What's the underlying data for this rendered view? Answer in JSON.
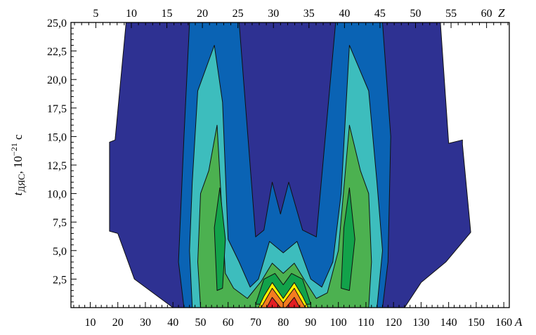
{
  "chart_data": {
    "type": "contour",
    "xlabel": "A",
    "x_top_label": "Z",
    "ylabel": {
      "main": "t",
      "subscript": "ДЯС",
      "unit_prefix": ", 10",
      "exponent": "−21",
      "unit": " с"
    },
    "xlim": [
      3,
      162
    ],
    "x_top_lim": [
      1.5,
      63.2
    ],
    "ylim": [
      0,
      25
    ],
    "x_ticks": [
      10,
      20,
      30,
      40,
      50,
      60,
      70,
      80,
      90,
      100,
      110,
      120,
      130,
      140,
      150,
      160
    ],
    "x_top_ticks": [
      5,
      10,
      15,
      20,
      25,
      30,
      35,
      40,
      45,
      50,
      55,
      60
    ],
    "y_ticks": [
      2.5,
      5.0,
      7.5,
      10.0,
      12.5,
      15.0,
      17.5,
      20.0,
      22.5,
      25.0
    ],
    "y_tick_labels": [
      "2,5",
      "5,0",
      "7,5",
      "10,0",
      "12,5",
      "15,0",
      "17,5",
      "20,0",
      "22,5",
      "25,0"
    ],
    "colors": {
      "level1": "#2e3192",
      "level2": "#0a63b4",
      "level3": "#3dbdbd",
      "level4": "#4cb150",
      "level5": "#12a24a",
      "level6": "#fff200",
      "level7": "#f47c20",
      "level8": "#e31e24"
    },
    "regions": [
      {
        "level": 1,
        "points": [
          [
            40,
            0
          ],
          [
            26,
            2.5
          ],
          [
            20,
            6.5
          ],
          [
            17,
            6.7
          ],
          [
            17,
            14.5
          ],
          [
            19,
            14.7
          ],
          [
            23,
            25
          ],
          [
            137,
            25
          ],
          [
            140,
            14.4
          ],
          [
            145,
            14.7
          ],
          [
            145,
            14.3
          ],
          [
            148,
            6.6
          ],
          [
            139,
            4
          ],
          [
            130,
            2.2
          ],
          [
            124,
            0
          ]
        ]
      },
      {
        "level": 2,
        "points": [
          [
            44,
            0
          ],
          [
            42,
            4
          ],
          [
            44,
            15
          ],
          [
            46,
            25
          ],
          [
            64,
            25
          ],
          [
            70,
            6.2
          ],
          [
            73,
            6.8
          ],
          [
            76,
            11
          ],
          [
            79,
            8.2
          ],
          [
            82,
            11
          ],
          [
            87,
            6.8
          ],
          [
            92,
            6.2
          ],
          [
            99,
            25
          ],
          [
            116,
            25
          ],
          [
            119,
            15
          ],
          [
            118,
            4
          ],
          [
            116,
            0
          ]
        ]
      },
      {
        "level": 3,
        "points": [
          [
            47,
            0
          ],
          [
            46,
            5
          ],
          [
            47,
            11
          ],
          [
            49,
            19
          ],
          [
            55,
            23
          ],
          [
            58,
            18
          ],
          [
            60,
            6
          ],
          [
            64,
            4
          ],
          [
            68,
            1.8
          ],
          [
            71,
            2.5
          ],
          [
            75,
            5.8
          ],
          [
            80,
            4.8
          ],
          [
            85,
            5.8
          ],
          [
            90,
            2.5
          ],
          [
            94,
            1.8
          ],
          [
            98,
            4
          ],
          [
            101,
            10
          ],
          [
            104,
            23
          ],
          [
            111,
            19
          ],
          [
            114,
            11
          ],
          [
            116,
            5
          ],
          [
            114,
            0
          ]
        ]
      },
      {
        "level": 4,
        "points": [
          [
            50,
            0
          ],
          [
            49,
            4
          ],
          [
            50,
            10
          ],
          [
            53,
            12
          ],
          [
            56,
            16
          ],
          [
            59,
            3
          ],
          [
            62,
            1.7
          ],
          [
            67,
            0.8
          ],
          [
            72,
            2.3
          ],
          [
            76,
            3.9
          ],
          [
            80,
            3
          ],
          [
            84,
            3.9
          ],
          [
            88,
            2.3
          ],
          [
            92,
            0.8
          ],
          [
            96,
            1.3
          ],
          [
            100,
            5
          ],
          [
            104,
            16
          ],
          [
            108,
            12
          ],
          [
            111,
            10
          ],
          [
            112,
            4
          ],
          [
            111,
            0
          ]
        ]
      },
      {
        "level": 5,
        "points": [
          [
            56,
            1.5
          ],
          [
            55,
            7
          ],
          [
            57,
            10.5
          ],
          [
            59,
            6
          ],
          [
            58,
            1.7
          ]
        ]
      },
      {
        "level": 5,
        "points": [
          [
            101,
            1.7
          ],
          [
            102,
            7
          ],
          [
            104,
            10.5
          ],
          [
            106,
            6
          ],
          [
            104,
            1.5
          ]
        ]
      },
      {
        "level": 5,
        "points": [
          [
            70,
            0.3
          ],
          [
            73,
            2.5
          ],
          [
            77,
            3
          ],
          [
            80,
            2
          ],
          [
            83,
            3
          ],
          [
            87,
            2.5
          ],
          [
            90,
            0.3
          ]
        ]
      },
      {
        "level": 6,
        "points": [
          [
            71,
            0
          ],
          [
            73,
            1
          ],
          [
            76,
            2.2
          ],
          [
            80,
            0.8
          ],
          [
            84,
            2.2
          ],
          [
            87,
            1
          ],
          [
            89,
            0
          ]
        ]
      },
      {
        "level": 7,
        "points": [
          [
            72,
            0
          ],
          [
            76,
            1.7
          ],
          [
            80,
            0.4
          ],
          [
            84,
            1.7
          ],
          [
            88,
            0
          ]
        ]
      },
      {
        "level": 8,
        "points": [
          [
            74,
            0
          ],
          [
            76,
            0.9
          ],
          [
            79,
            0
          ],
          [
            81,
            0
          ],
          [
            84,
            0.9
          ],
          [
            86,
            0
          ]
        ]
      }
    ]
  }
}
